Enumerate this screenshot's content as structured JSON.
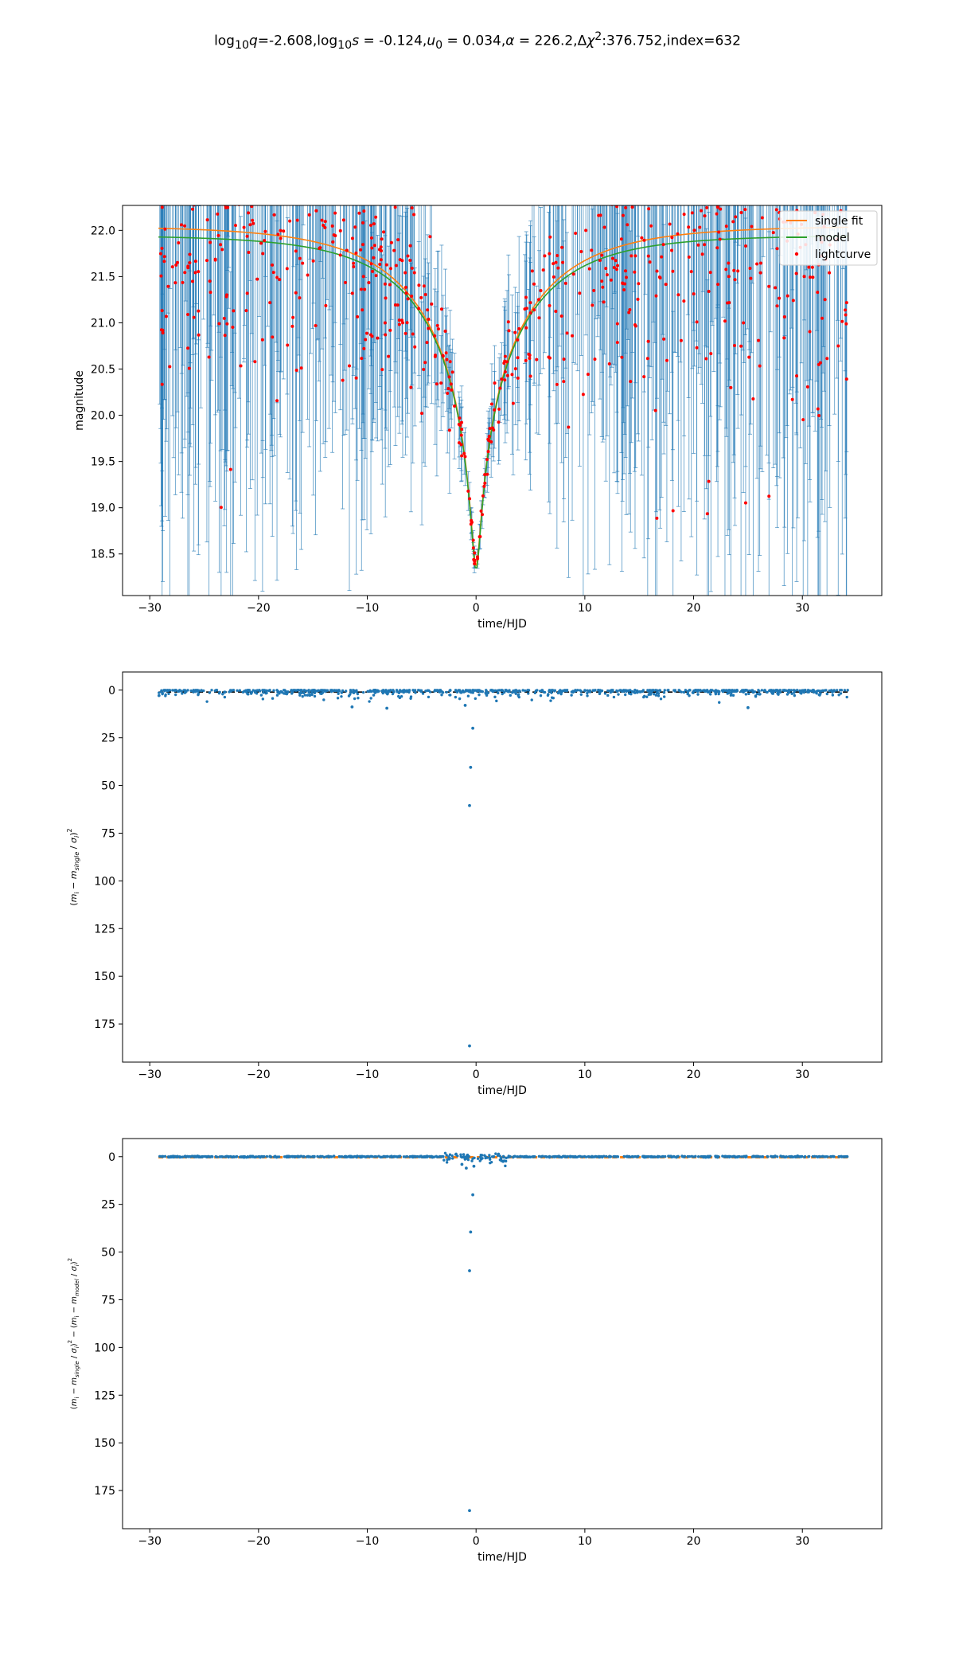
{
  "figure": {
    "title_html": "log<sub>10</sub><i>q</i>=-2.608,log<sub>10</sub><i>s</i> = -0.124,<i>u</i><sub>0</sub> = 0.034,<i>α</i> = 226.2,Δ<i>χ</i><sup>2</sup>:376.752,index=632"
  },
  "colors": {
    "lightcurve": "#ff0000",
    "errorbar": "#1f77b4",
    "single_fit": "#ff7f0e",
    "model": "#2ca02c",
    "residual_points": "#1f77b4"
  },
  "chart_data": [
    {
      "type": "line",
      "panel": "lightcurve",
      "xlabel": "time/HJD",
      "ylabel": "magnitude",
      "xlim": [
        -32.5,
        37.3
      ],
      "ylim": [
        22.27,
        18.05
      ],
      "y_inverted": true,
      "xticks": [
        -30,
        -20,
        -10,
        0,
        10,
        20,
        30
      ],
      "yticks": [
        18.5,
        19.0,
        19.5,
        20.0,
        20.5,
        21.0,
        21.5,
        22.0
      ],
      "ytick_labels": [
        "18.5",
        "19.0",
        "19.5",
        "20.0",
        "20.5",
        "21.0",
        "21.5",
        "22.0"
      ],
      "legend": {
        "placement": "top-right",
        "entries": [
          "single fit",
          "model",
          "lightcurve"
        ]
      },
      "model_params": {
        "t0": 0.0,
        "tE": 11.0,
        "u0": 0.034,
        "baseline": 22.05,
        "baseline_model": 21.95
      },
      "t_range": [
        -29.2,
        34.2
      ],
      "series": [
        {
          "name": "single fit",
          "kind": "line",
          "color": "#ff7f0e"
        },
        {
          "name": "model",
          "kind": "line",
          "color": "#2ca02c"
        },
        {
          "name": "lightcurve",
          "kind": "scatter_errorbar",
          "color": "#ff0000",
          "n_points": 760
        }
      ]
    },
    {
      "type": "scatter",
      "panel": "chi2_single",
      "xlabel": "time/HJD",
      "ylabel": "(\\frac{m_i - m_{single}}{\\sigma_i})^2",
      "xlim": [
        -32.5,
        37.3
      ],
      "ylim": [
        -9.5,
        195
      ],
      "xticks": [
        -30,
        -20,
        -10,
        0,
        10,
        20,
        30
      ],
      "yticks": [
        0,
        25,
        50,
        75,
        100,
        125,
        150,
        175
      ],
      "reference_lines": [
        1.0
      ],
      "outliers": [
        {
          "x": -0.6,
          "y": 186.5
        },
        {
          "x": -0.6,
          "y": 60.5
        },
        {
          "x": -0.5,
          "y": 40.5
        },
        {
          "x": -0.3,
          "y": 20.0
        },
        {
          "x": -8.2,
          "y": 9.5
        },
        {
          "x": 25.0,
          "y": 9.2
        },
        {
          "x": -11.4,
          "y": 8.8
        },
        {
          "x": -1.0,
          "y": 8.0
        }
      ],
      "n_points": 760
    },
    {
      "type": "scatter",
      "panel": "chi2_difference",
      "xlabel": "time/HJD",
      "ylabel": "(\\frac{m_i - m_{single}}{\\sigma_i})^2 - (\\frac{m_i - m_{model}}{\\sigma_i})^2",
      "xlim": [
        -32.5,
        37.3
      ],
      "ylim": [
        -9.5,
        195
      ],
      "xticks": [
        -30,
        -20,
        -10,
        0,
        10,
        20,
        30
      ],
      "yticks": [
        0,
        25,
        50,
        75,
        100,
        125,
        150,
        175
      ],
      "reference_lines": [
        0.0,
        0.6
      ],
      "outliers": [
        {
          "x": -0.6,
          "y": 185.5
        },
        {
          "x": -0.6,
          "y": 59.8
        },
        {
          "x": -0.5,
          "y": 39.5
        },
        {
          "x": -0.3,
          "y": 20.0
        },
        {
          "x": -0.9,
          "y": 6.0
        },
        {
          "x": -0.2,
          "y": 5.0
        },
        {
          "x": -1.3,
          "y": 4.0
        }
      ],
      "n_points": 760
    }
  ]
}
